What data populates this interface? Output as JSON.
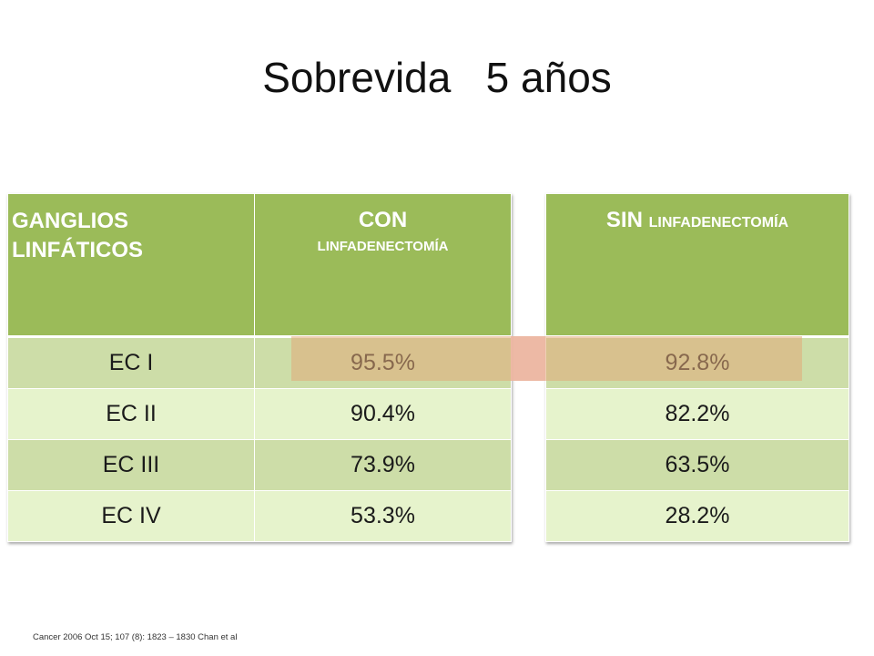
{
  "title": "Sobrevida   5 años",
  "table_left": {
    "header_col1": "GANGLIOS LINFÁTICOS",
    "header_col2_main": "CON",
    "header_col2_sub": "LINFADENECTOMÍA",
    "rows": [
      {
        "stage": "EC I",
        "value": "95.5%"
      },
      {
        "stage": "EC II",
        "value": "90.4%"
      },
      {
        "stage": "EC III",
        "value": "73.9%"
      },
      {
        "stage": "EC IV",
        "value": "53.3%"
      }
    ]
  },
  "table_right": {
    "header_main": "SIN",
    "header_sub": "LINFADENECTOMÍA",
    "rows": [
      {
        "value": "92.8%"
      },
      {
        "value": "82.2%"
      },
      {
        "value": "63.5%"
      },
      {
        "value": "28.2%"
      }
    ]
  },
  "citation": "Cancer 2006 Oct 15; 107 (8): 1823 – 1830 Chan et al",
  "colors": {
    "header_green": "#9bbb59",
    "row_dark": "#cddda8",
    "row_light": "#e6f3cc",
    "highlight": "#e2aa78",
    "pink": "#fac8d7"
  }
}
